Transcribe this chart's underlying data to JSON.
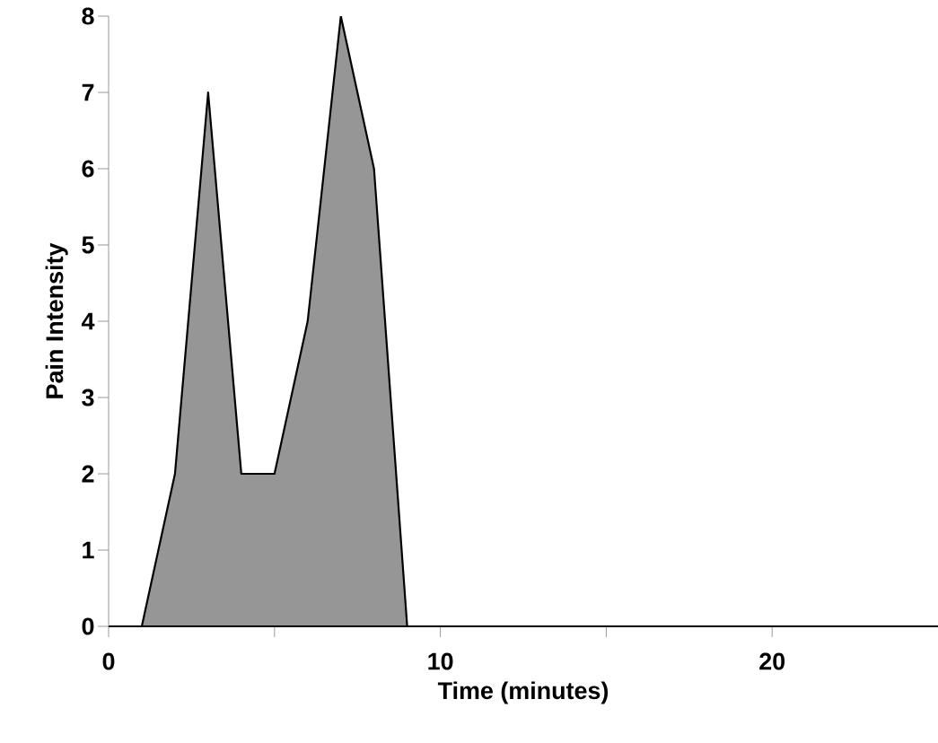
{
  "chart_data": {
    "type": "area",
    "xlabel": "Time (minutes)",
    "ylabel": "Pain Intensity",
    "x": [
      1,
      2,
      3,
      4,
      5,
      6,
      7,
      8,
      9
    ],
    "values": [
      0,
      2,
      7,
      2,
      2,
      4,
      8,
      6,
      0
    ],
    "color": "#969696",
    "xlim": [
      0,
      25
    ],
    "ylim": [
      0,
      8
    ],
    "xticks": [
      0,
      {
        "value": 5,
        "label": null
      },
      10,
      {
        "value": 15,
        "label": null
      },
      20
    ],
    "yticks": [
      0,
      1,
      2,
      3,
      4,
      5,
      6,
      7,
      8
    ],
    "grid": false
  }
}
